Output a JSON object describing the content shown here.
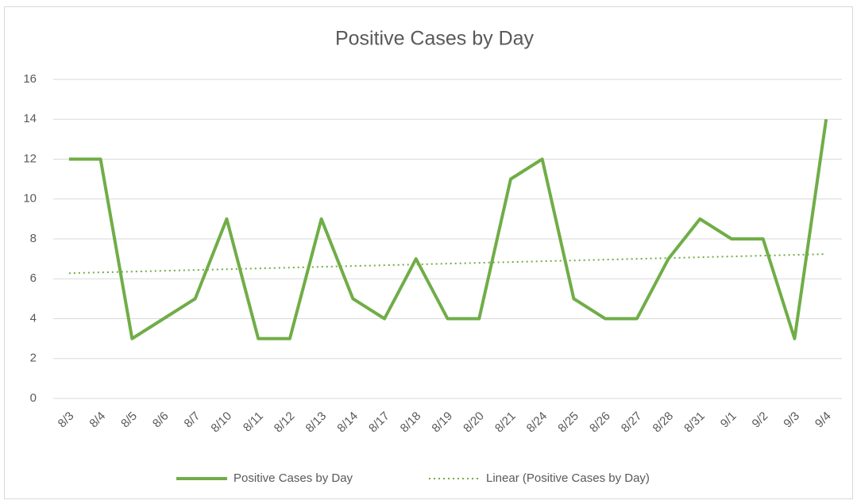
{
  "chart_data": {
    "type": "line",
    "title": "Positive Cases by Day",
    "categories": [
      "8/3",
      "8/4",
      "8/5",
      "8/6",
      "8/7",
      "8/10",
      "8/11",
      "8/12",
      "8/13",
      "8/14",
      "8/17",
      "8/18",
      "8/19",
      "8/20",
      "8/21",
      "8/24",
      "8/25",
      "8/26",
      "8/27",
      "8/28",
      "8/31",
      "9/1",
      "9/2",
      "9/3",
      "9/4"
    ],
    "series": [
      {
        "name": "Positive Cases by Day",
        "color": "#70ad47",
        "style": "solid",
        "values": [
          12,
          12,
          3,
          4,
          5,
          9,
          3,
          3,
          9,
          5,
          4,
          7,
          4,
          4,
          11,
          12,
          5,
          4,
          4,
          7,
          9,
          8,
          8,
          3,
          14
        ]
      },
      {
        "name": "Linear (Positive Cases by Day)",
        "color": "#70ad47",
        "style": "dotted",
        "values": [
          6.28,
          6.32,
          6.36,
          6.4,
          6.44,
          6.48,
          6.52,
          6.56,
          6.6,
          6.64,
          6.68,
          6.72,
          6.76,
          6.8,
          6.84,
          6.88,
          6.92,
          6.96,
          7.0,
          7.04,
          7.08,
          7.12,
          7.16,
          7.2,
          7.24
        ]
      }
    ],
    "ylim": [
      0,
      16
    ],
    "yticks": [
      0,
      2,
      4,
      6,
      8,
      10,
      12,
      14,
      16
    ],
    "grid": true,
    "legend": "bottom"
  }
}
